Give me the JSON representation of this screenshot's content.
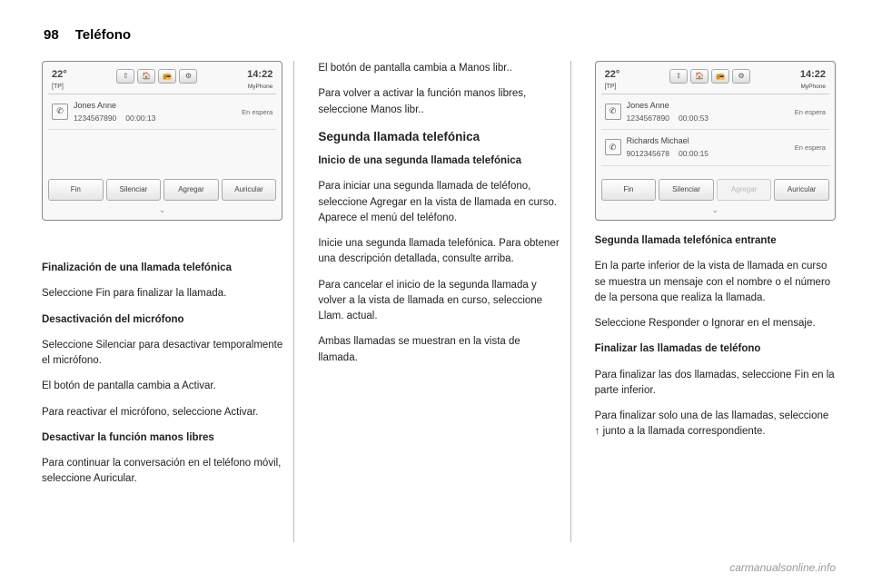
{
  "page_number": "98",
  "section": "Teléfono",
  "watermark": "carmanualsonline.info",
  "screen1": {
    "temp": "22°",
    "tp": "[TP]",
    "clock": "14:22",
    "clock_sub": "MyPhone",
    "icons": [
      "⇧",
      "🏠",
      "📻",
      "⚙"
    ],
    "call1": {
      "name": "Jones Anne",
      "number": "1234567890",
      "duration": "00:00:13",
      "status": "En espera"
    },
    "buttons": [
      "Fin",
      "Silenciar",
      "Agregar",
      "Auricular"
    ]
  },
  "screen2": {
    "temp": "22°",
    "tp": "[TP]",
    "clock": "14:22",
    "clock_sub": "MyPhone",
    "icons": [
      "⇧",
      "🏠",
      "📻",
      "⚙"
    ],
    "call1": {
      "name": "Jones Anne",
      "number": "1234567890",
      "duration": "00:00:53",
      "status": "En espera"
    },
    "call2": {
      "name": "Richards Michael",
      "number": "9012345678",
      "duration": "00:00:15",
      "status": "En espera"
    },
    "buttons": [
      "Fin",
      "Silenciar",
      "Agregar",
      "Auricular"
    ]
  },
  "col1": {
    "h_fin_title": "Finalización de una llamada telefónica",
    "p_fin": "Seleccione Fin para finalizar la llamada.",
    "h_desact": "Desactivación del micrófono",
    "p_desact1": "Seleccione Silenciar para desactivar temporalmente el micrófono.",
    "p_desact2": "El botón de pantalla cambia a Activar.",
    "p_desact3": "Para reactivar el micrófono, seleccione Activar.",
    "h_manos": "Desactivar la función manos libres",
    "p_manos": "Para continuar la conversación en el teléfono móvil, seleccione Auricular."
  },
  "col2": {
    "p_top1": "El botón de pantalla cambia a Manos libr..",
    "p_top2": "Para volver a activar la función manos libres, seleccione Manos libr..",
    "h_seg": "Segunda llamada telefónica",
    "h_inicio": "Inicio de una segunda llamada telefónica",
    "p_inicio1": "Para iniciar una segunda llamada de teléfono, seleccione Agregar en la vista de llamada en curso. Aparece el menú del teléfono.",
    "p_inicio2": "Inicie una segunda llamada telefónica. Para obtener una descripción detallada, consulte arriba.",
    "p_inicio3": "Para cancelar el inicio de la segunda llamada y volver a la vista de llamada en curso, seleccione Llam. actual.",
    "p_inicio4": "Ambas llamadas se muestran en la vista de llamada."
  },
  "col3": {
    "h_entr": "Segunda llamada telefónica entrante",
    "p_entr1": "En la parte inferior de la vista de llamada en curso se muestra un mensaje con el nombre o el número de la persona que realiza la llamada.",
    "p_entr2": "Seleccione Responder o Ignorar en el mensaje.",
    "h_final": "Finalizar las llamadas de teléfono",
    "p_final1": "Para finalizar las dos llamadas, seleccione Fin en la parte inferior.",
    "p_final2": "Para finalizar solo una de las llamadas, seleccione ↑ junto a la llamada correspondiente."
  }
}
